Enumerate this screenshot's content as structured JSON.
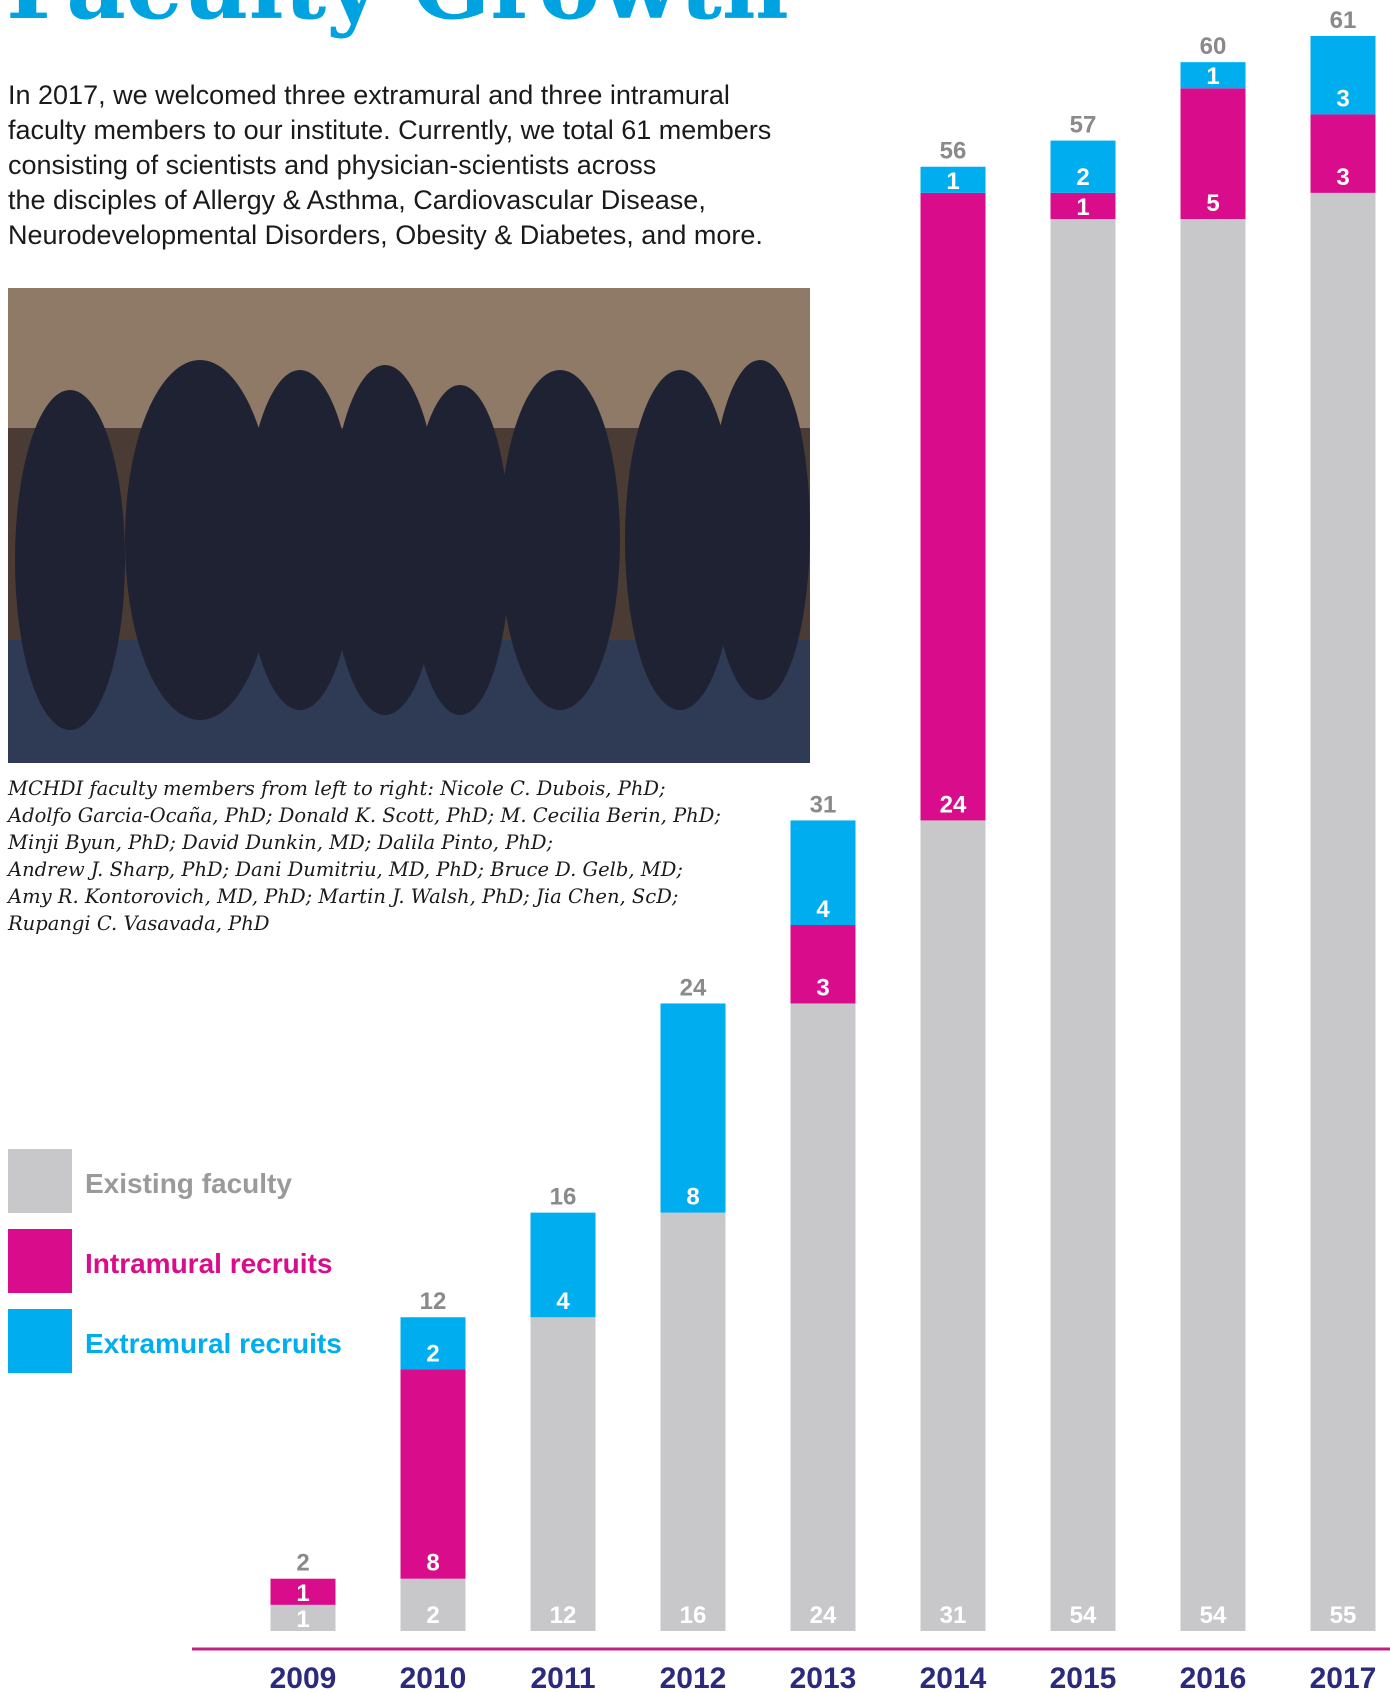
{
  "chart_data": {
    "type": "stacked-bar",
    "title": "Faculty Growth",
    "description": [
      "In 2017, we welcomed three extramural and three intramural",
      "faculty members to our institute. Currently, we total 61 members",
      "consisting of scientists and physician-scientists across",
      "the disciples of Allergy & Asthma, Cardiovascular Disease,",
      "Neurodevelopmental Disorders, Obesity & Diabetes, and more."
    ],
    "caption": [
      "MCHDI faculty members from left to right: Nicole C. Dubois, PhD;",
      "Adolfo Garcia-Ocaña, PhD; Donald K. Scott, PhD; M. Cecilia Berin, PhD;",
      "Minji Byun, PhD; David Dunkin, MD; Dalila Pinto, PhD;",
      "Andrew J. Sharp, PhD; Dani Dumitriu, MD, PhD; Bruce D. Gelb, MD;",
      "Amy R. Kontorovich, MD, PhD; Martin J. Walsh, PhD; Jia Chen, ScD;",
      "Rupangi C. Vasavada, PhD"
    ],
    "categories": [
      "2009",
      "2010",
      "2011",
      "2012",
      "2013",
      "2014",
      "2015",
      "2016",
      "2017"
    ],
    "series": [
      {
        "name": "Existing faculty",
        "color": "#c8c8ca",
        "values": [
          1,
          2,
          12,
          16,
          24,
          31,
          54,
          54,
          55
        ]
      },
      {
        "name": "Intramural recruits",
        "color": "#d90d8b",
        "values": [
          1,
          8,
          0,
          0,
          3,
          24,
          1,
          5,
          3
        ]
      },
      {
        "name": "Extramural recruits",
        "color": "#00aeef",
        "values": [
          0,
          2,
          4,
          8,
          4,
          1,
          2,
          1,
          3
        ]
      }
    ],
    "totals": [
      2,
      12,
      16,
      24,
      31,
      56,
      57,
      60,
      61
    ]
  }
}
